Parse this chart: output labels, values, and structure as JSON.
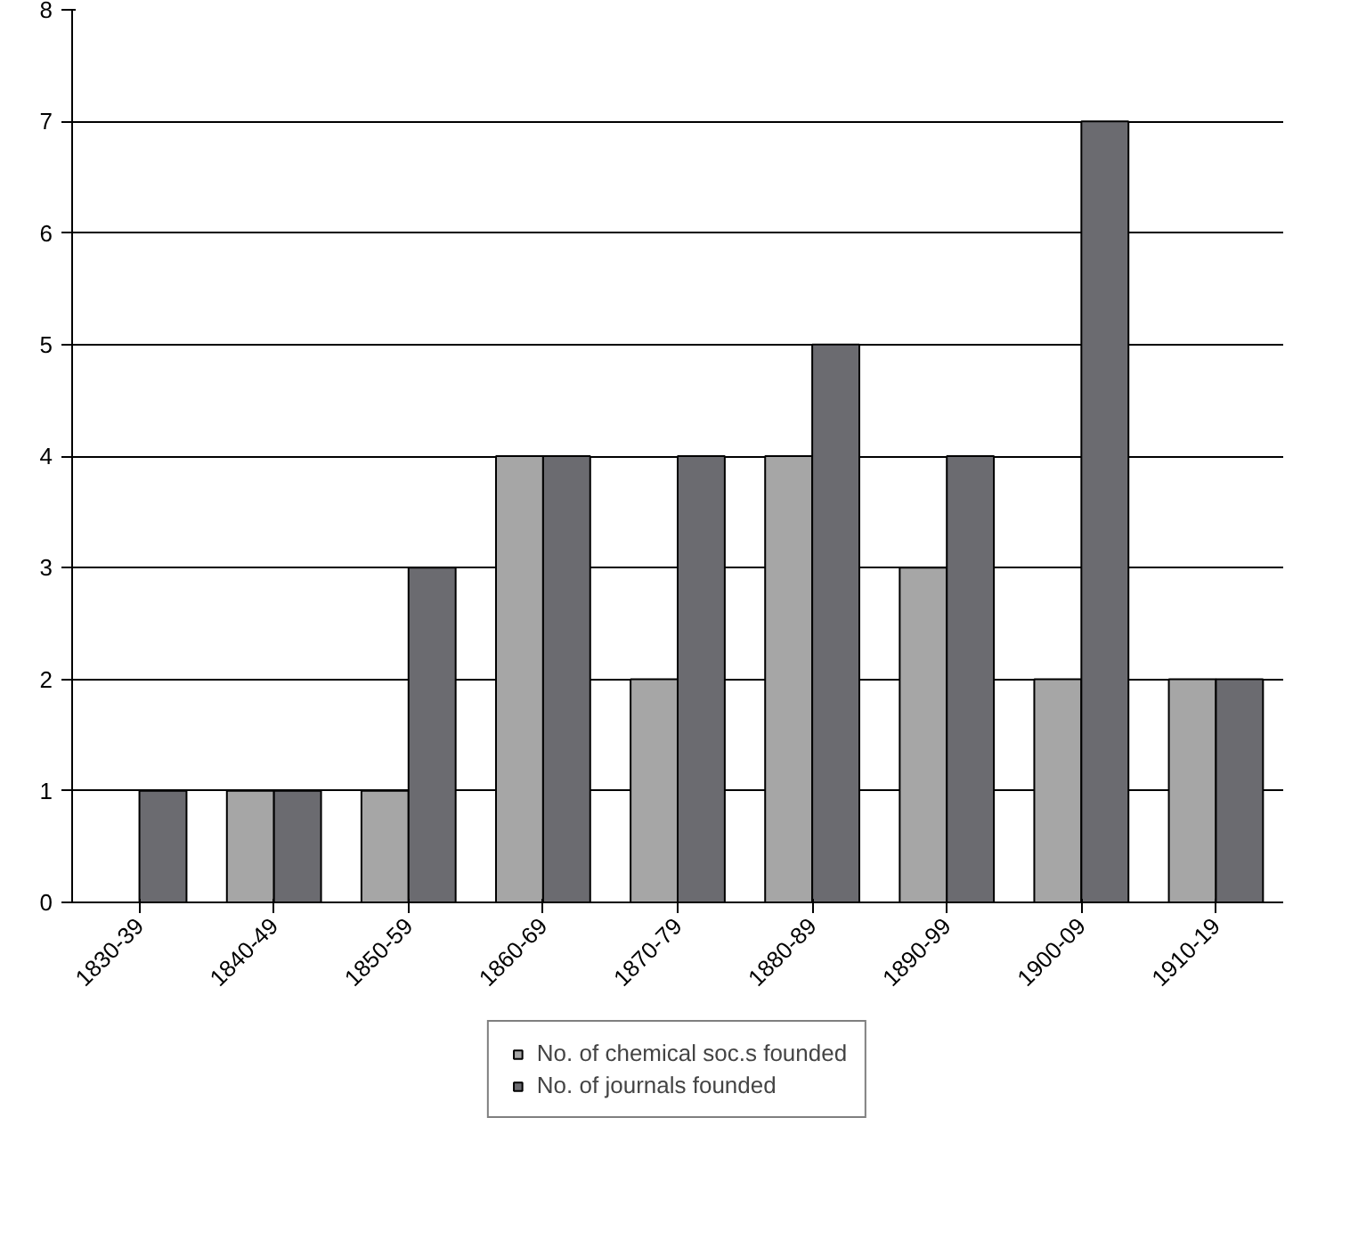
{
  "chart_data": {
    "type": "bar",
    "categories": [
      "1830-39",
      "1840-49",
      "1850-59",
      "1860-69",
      "1870-79",
      "1880-89",
      "1890-99",
      "1900-09",
      "1910-19"
    ],
    "series": [
      {
        "name": "No. of chemical soc.s founded",
        "color": "#a6a6a6",
        "values": [
          null,
          1,
          1,
          4,
          2,
          4,
          3,
          2,
          2
        ]
      },
      {
        "name": "No. of journals founded",
        "color": "#6b6b70",
        "values": [
          1,
          1,
          3,
          4,
          4,
          5,
          4,
          7,
          2
        ]
      }
    ],
    "ylim": [
      0,
      8
    ],
    "yticks": [
      0,
      1,
      2,
      3,
      4,
      5,
      6,
      7,
      8
    ],
    "grid": "y",
    "legend": "bottom"
  }
}
